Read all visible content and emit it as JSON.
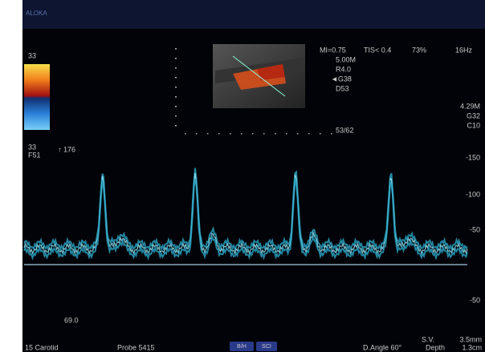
{
  "header": {
    "brand": "ALOKA"
  },
  "left_panel": {
    "scale_top": "33",
    "scale_bottom": "33",
    "frame_rate": "F51",
    "marker": "↑ 176"
  },
  "parameters": {
    "mi": "MI=0.75",
    "tis": "TIS< 0.4",
    "power": "73%",
    "rate": "16Hz",
    "lines": [
      "5.00M",
      "R4.0",
      "◄G38",
      "D53"
    ],
    "ratio": "53/62"
  },
  "doppler_params": [
    "4.29M",
    "G32",
    "C10"
  ],
  "velocity_scale": [
    "-150",
    "-100",
    "-50",
    "-50"
  ],
  "angle_value": "69.0",
  "footer": {
    "preset": "15 Carotid",
    "probe": "Probe 5415",
    "buttons": [
      "B/H",
      "SCI"
    ],
    "d_angle": "D.Angle 60°",
    "sv_label": "S.V.",
    "sv_value": "3.5mm",
    "depth_label": "Depth",
    "depth_value": "1.3cm"
  }
}
